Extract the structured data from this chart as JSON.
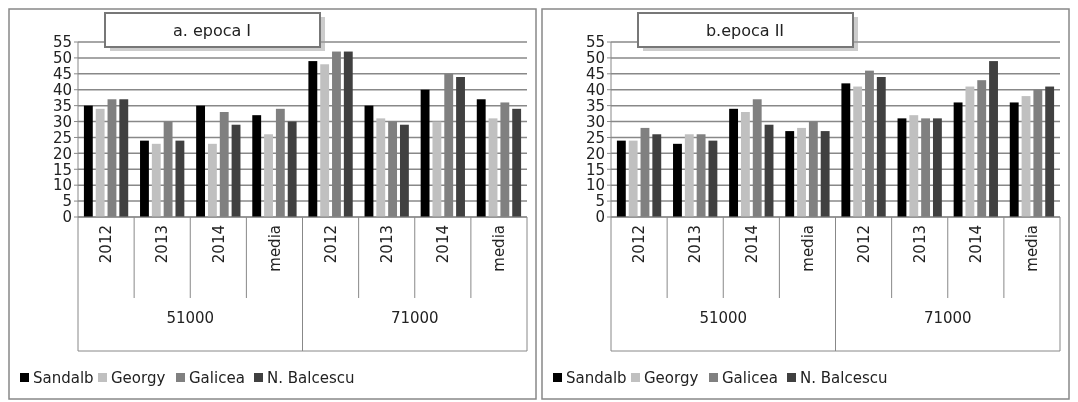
{
  "chart_data": [
    {
      "type": "bar",
      "title": "a. epoca I",
      "categories": [
        "2012",
        "2013",
        "2014",
        "media",
        "2012",
        "2013",
        "2014",
        "media"
      ],
      "annotations": [
        "51000",
        "71000"
      ],
      "ylim": [
        0,
        55
      ],
      "yticks": [
        0,
        5,
        10,
        15,
        20,
        25,
        30,
        35,
        40,
        45,
        50,
        55
      ],
      "grid": "y",
      "legend": "bottom",
      "series": [
        {
          "name": "Sandalb",
          "color": "#000000",
          "values": [
            35,
            24,
            35,
            32,
            49,
            35,
            40,
            37
          ]
        },
        {
          "name": "Georgy",
          "color": "#c0c0c0",
          "values": [
            34,
            23,
            23,
            26,
            48,
            31,
            30,
            31
          ]
        },
        {
          "name": "Galicea",
          "color": "#808080",
          "values": [
            37,
            30,
            33,
            34,
            52,
            30,
            45,
            36
          ]
        },
        {
          "name": "N. Balcescu",
          "color": "#404040",
          "values": [
            37,
            24,
            29,
            30,
            52,
            29,
            44,
            34
          ]
        }
      ]
    },
    {
      "type": "bar",
      "title": "b.epoca II",
      "categories": [
        "2012",
        "2013",
        "2014",
        "media",
        "2012",
        "2013",
        "2014",
        "media"
      ],
      "annotations": [
        "51000",
        "71000"
      ],
      "ylim": [
        0,
        55
      ],
      "yticks": [
        0,
        5,
        10,
        15,
        20,
        25,
        30,
        35,
        40,
        45,
        50,
        55
      ],
      "grid": "y",
      "legend": "bottom",
      "series": [
        {
          "name": "Sandalb",
          "color": "#000000",
          "values": [
            24,
            23,
            34,
            27,
            42,
            31,
            36,
            36
          ]
        },
        {
          "name": "Georgy",
          "color": "#c0c0c0",
          "values": [
            24,
            26,
            33,
            28,
            41,
            32,
            41,
            38
          ]
        },
        {
          "name": "Galicea",
          "color": "#808080",
          "values": [
            28,
            26,
            37,
            30,
            46,
            31,
            43,
            40
          ]
        },
        {
          "name": "N. Balcescu",
          "color": "#404040",
          "values": [
            26,
            24,
            29,
            27,
            44,
            31,
            49,
            41
          ]
        }
      ]
    }
  ]
}
